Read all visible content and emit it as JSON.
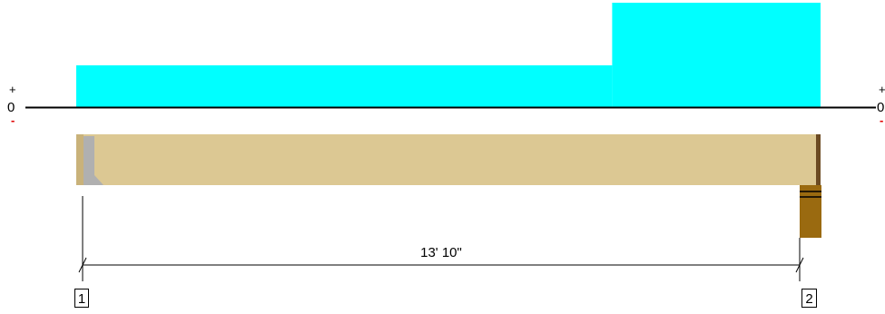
{
  "load_diagram": {
    "axis_left": {
      "plus": "+",
      "zero": "0",
      "minus": "-"
    },
    "axis_right": {
      "plus": "+",
      "zero": "0",
      "minus": "-"
    },
    "load_color": "#00ffff",
    "segments": [
      {
        "name": "low-load",
        "from_support_fraction": 0.0,
        "to_support_fraction": 0.72,
        "relative_magnitude": 0.4
      },
      {
        "name": "high-load",
        "from_support_fraction": 0.72,
        "to_support_fraction": 1.0,
        "relative_magnitude": 1.0
      }
    ]
  },
  "beam": {
    "color": "#dcc893",
    "end_plate_color": "#b0b0b0",
    "right_end_color": "#6b4a22",
    "post_color": "#9a6a10"
  },
  "dimension": {
    "span_label": "13' 10\""
  },
  "supports": [
    {
      "label": "1"
    },
    {
      "label": "2"
    }
  ]
}
